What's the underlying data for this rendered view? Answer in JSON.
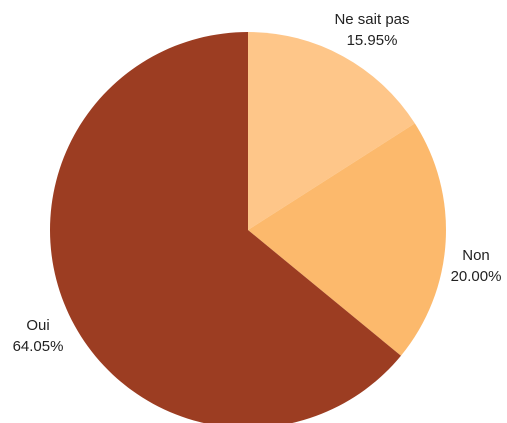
{
  "chart_data": {
    "type": "pie",
    "title": "",
    "start_angle_deg": 0,
    "direction": "clockwise",
    "slices": [
      {
        "label": "Ne sait pas",
        "value": 15.95,
        "display_value": "15.95%",
        "color": "#FEC689"
      },
      {
        "label": "Non",
        "value": 20.0,
        "display_value": "20.00%",
        "color": "#FCB96C"
      },
      {
        "label": "Oui",
        "value": 64.05,
        "display_value": "64.05%",
        "color": "#9C3D22"
      }
    ],
    "legend": "none",
    "labels_outside": true
  }
}
